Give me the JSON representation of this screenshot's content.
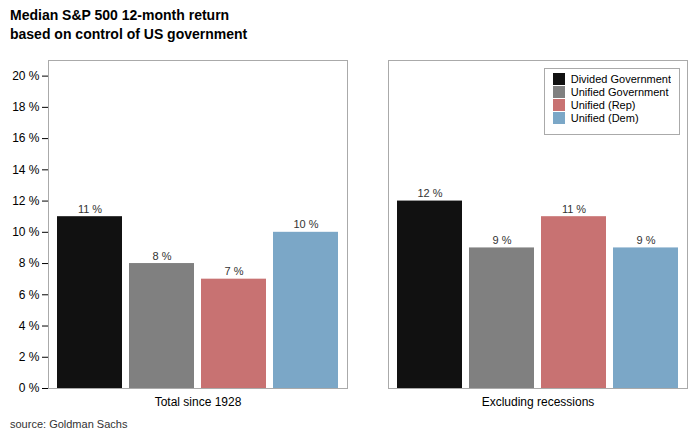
{
  "chart_data": {
    "type": "bar",
    "title": "Median S&P 500 12-month return\nbased on control of US government",
    "categories": [
      "Total since 1928",
      "Excluding recessions"
    ],
    "series": [
      {
        "name": "Divided Government",
        "color": "#111111",
        "values": [
          11,
          12
        ],
        "value_labels": [
          "11 %",
          "12 %"
        ]
      },
      {
        "name": "Unified Government",
        "color": "#808080",
        "values": [
          8,
          9
        ],
        "value_labels": [
          "8 %",
          "9 %"
        ]
      },
      {
        "name": "Unified (Rep)",
        "color": "#C87272",
        "values": [
          7,
          11
        ],
        "value_labels": [
          "7 %",
          "11 %"
        ]
      },
      {
        "name": "Unified (Dem)",
        "color": "#7BA7C7",
        "values": [
          10,
          9
        ],
        "value_labels": [
          "10 %",
          "9 %"
        ]
      }
    ],
    "ylim": [
      0,
      21
    ],
    "yticks": [
      {
        "value": 0,
        "label": "0 %"
      },
      {
        "value": 2,
        "label": "2 %"
      },
      {
        "value": 4,
        "label": "4 %"
      },
      {
        "value": 6,
        "label": "6 %"
      },
      {
        "value": 8,
        "label": "8 %"
      },
      {
        "value": 10,
        "label": "10 %"
      },
      {
        "value": 12,
        "label": "12 %"
      },
      {
        "value": 14,
        "label": "14 %"
      },
      {
        "value": 16,
        "label": "16 %"
      },
      {
        "value": 18,
        "label": "18 %"
      },
      {
        "value": 20,
        "label": "20 %"
      }
    ],
    "legend": "upper right",
    "data_labels": true,
    "annotations": [
      "source: Goldman Sachs"
    ]
  }
}
